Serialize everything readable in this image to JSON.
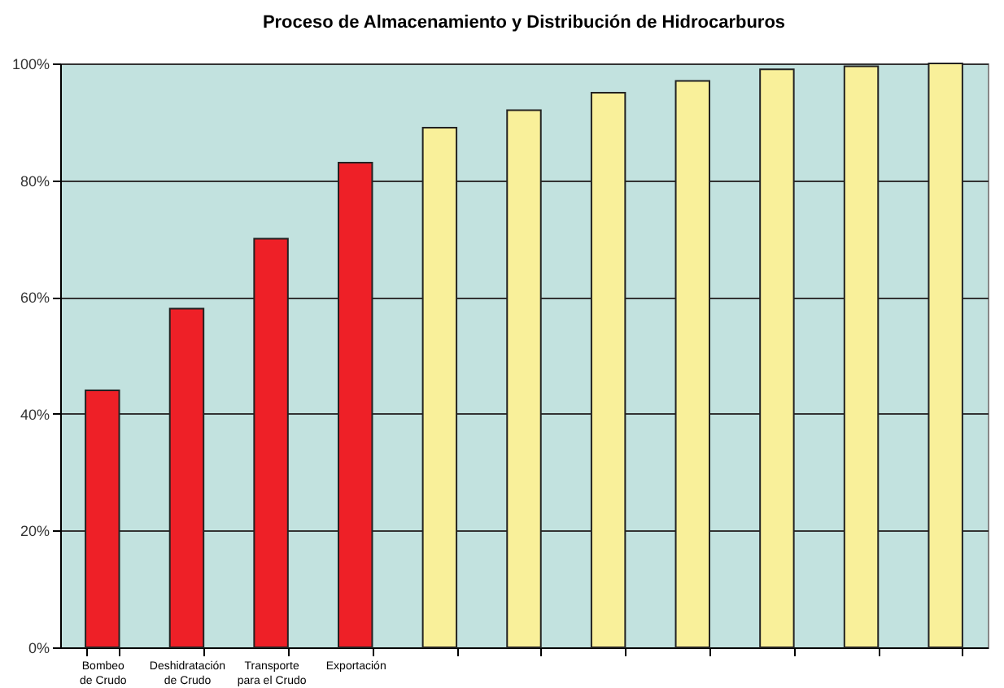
{
  "chart_data": {
    "type": "bar",
    "title": "Proceso de Almacenamiento y Distribución de Hidrocarburos",
    "categories": [
      "Bombeo de Crudo",
      "Deshidratación de Crudo",
      "Transporte para el Crudo",
      "Exportación",
      null,
      null,
      null,
      null,
      null,
      null,
      null
    ],
    "values": [
      44,
      58,
      70,
      83,
      89,
      92,
      95,
      97,
      99,
      99.5,
      100
    ],
    "colors": [
      "#ee2027",
      "#ee2027",
      "#ee2027",
      "#ee2027",
      "#f9f09a",
      "#f9f09a",
      "#f9f09a",
      "#f9f09a",
      "#f9f09a",
      "#f9f09a",
      "#f9f09a"
    ],
    "ylim": [
      0,
      100
    ],
    "yticks": [
      {
        "value": 0,
        "label": "0%"
      },
      {
        "value": 20,
        "label": "20%"
      },
      {
        "value": 40,
        "label": "40%"
      },
      {
        "value": 60,
        "label": "60%"
      },
      {
        "value": 80,
        "label": "80%"
      },
      {
        "value": 100,
        "label": "100%"
      }
    ],
    "grid": "y"
  }
}
